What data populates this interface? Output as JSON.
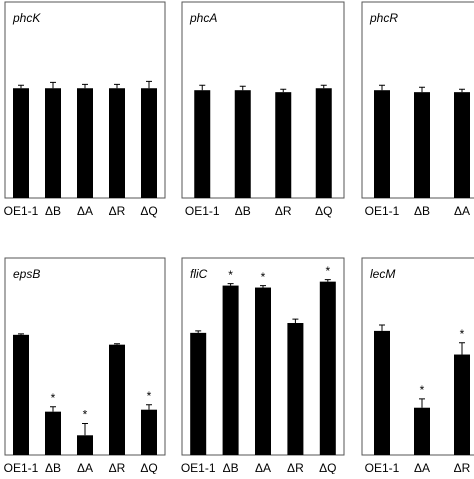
{
  "chart_data": [
    {
      "type": "bar",
      "title": "phcK",
      "categories": [
        "OE1-1",
        "ΔB",
        "ΔA",
        "ΔR",
        "ΔQ"
      ],
      "values": [
        56,
        56,
        56,
        56,
        56
      ],
      "errors": [
        1.5,
        3,
        2,
        2,
        3.5
      ],
      "color": "#000000",
      "ylim": [
        0,
        100
      ]
    },
    {
      "type": "bar",
      "title": "phcA",
      "categories": [
        "OE1-1",
        "ΔB",
        "ΔR",
        "ΔQ"
      ],
      "values": [
        55,
        55,
        54,
        56
      ],
      "errors": [
        2.5,
        2,
        1.5,
        1.5
      ],
      "color": "#000000",
      "ylim": [
        0,
        100
      ]
    },
    {
      "type": "bar",
      "title": "phcR",
      "categories": [
        "OE1-1",
        "ΔB",
        "ΔA"
      ],
      "values": [
        55,
        54,
        54
      ],
      "errors": [
        2.5,
        2.5,
        1.5
      ],
      "color": "#000000",
      "ylim": [
        0,
        100
      ]
    },
    {
      "type": "bar",
      "title": "epsB",
      "categories": [
        "OE1-1",
        "ΔB",
        "ΔA",
        "ΔR",
        "ΔQ"
      ],
      "values": [
        61,
        22,
        10,
        56,
        23
      ],
      "errors": [
        0.5,
        2.5,
        6,
        0.5,
        2.5
      ],
      "significance": [
        null,
        "*",
        "*",
        null,
        "*"
      ],
      "color": "#000000",
      "ylim": [
        0,
        100
      ]
    },
    {
      "type": "bar",
      "title": "fliC",
      "categories": [
        "OE1-1",
        "ΔB",
        "ΔA",
        "ΔR",
        "ΔQ"
      ],
      "values": [
        62,
        86,
        85,
        67,
        88
      ],
      "errors": [
        1,
        1,
        1,
        2,
        1
      ],
      "significance": [
        null,
        "*",
        "*",
        null,
        "*"
      ],
      "color": "#000000",
      "ylim": [
        0,
        100
      ]
    },
    {
      "type": "bar",
      "title": "lecM",
      "categories": [
        "OE1-1",
        "ΔA",
        "ΔR"
      ],
      "values": [
        63,
        24,
        51
      ],
      "errors": [
        3,
        4.5,
        6
      ],
      "significance": [
        null,
        "*",
        "*"
      ],
      "color": "#000000",
      "ylim": [
        0,
        100
      ]
    }
  ]
}
